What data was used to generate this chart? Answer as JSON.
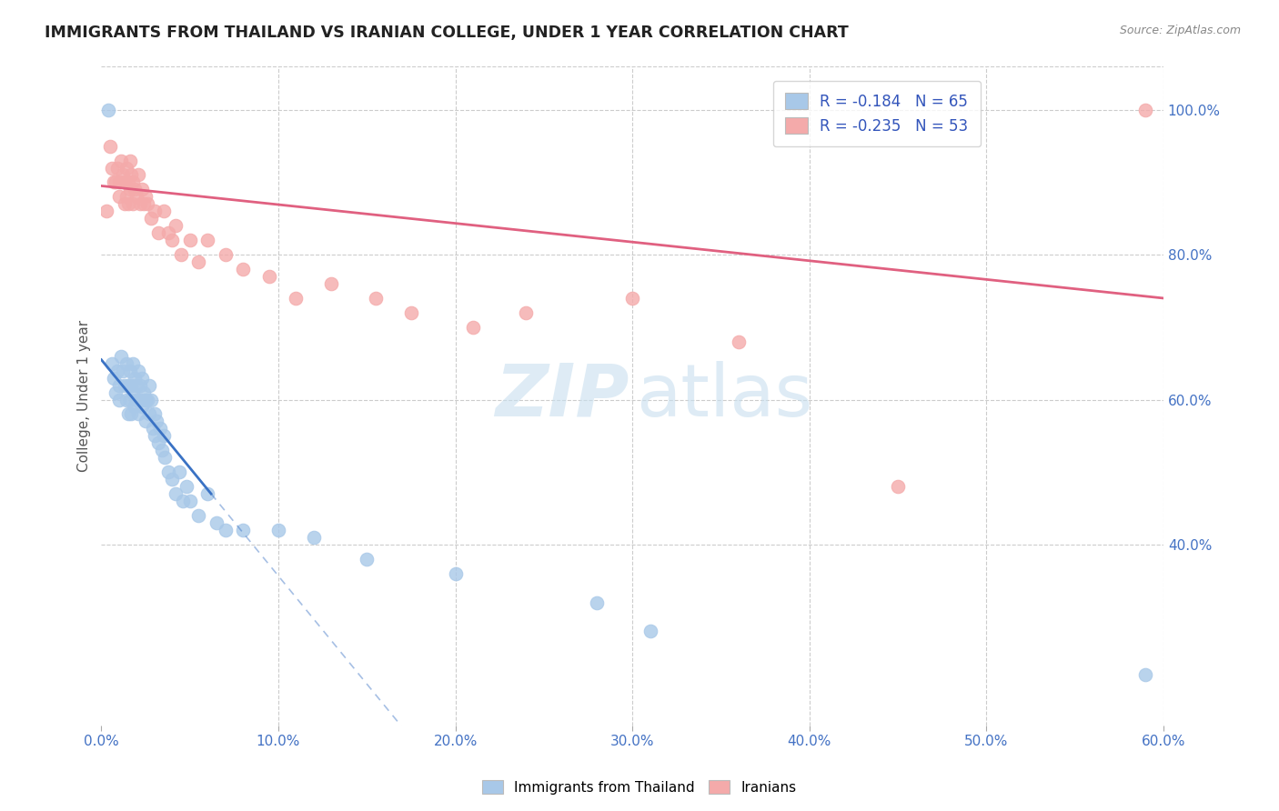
{
  "title": "IMMIGRANTS FROM THAILAND VS IRANIAN COLLEGE, UNDER 1 YEAR CORRELATION CHART",
  "source": "Source: ZipAtlas.com",
  "ylabel_label": "College, Under 1 year",
  "xlim": [
    0.0,
    0.6
  ],
  "ylim": [
    0.15,
    1.06
  ],
  "legend_r1": "-0.184",
  "legend_n1": "65",
  "legend_r2": "-0.235",
  "legend_n2": "53",
  "blue_color": "#A8C8E8",
  "pink_color": "#F4AAAA",
  "blue_line_color": "#3A72C4",
  "pink_line_color": "#E06080",
  "background_color": "#FFFFFF",
  "blue_scatter_x": [
    0.004,
    0.006,
    0.007,
    0.008,
    0.009,
    0.01,
    0.01,
    0.011,
    0.012,
    0.013,
    0.014,
    0.014,
    0.015,
    0.015,
    0.016,
    0.016,
    0.017,
    0.017,
    0.018,
    0.018,
    0.019,
    0.019,
    0.02,
    0.02,
    0.021,
    0.021,
    0.022,
    0.022,
    0.023,
    0.023,
    0.024,
    0.025,
    0.025,
    0.026,
    0.027,
    0.027,
    0.028,
    0.029,
    0.03,
    0.03,
    0.031,
    0.032,
    0.033,
    0.034,
    0.035,
    0.036,
    0.038,
    0.04,
    0.042,
    0.044,
    0.046,
    0.048,
    0.05,
    0.055,
    0.06,
    0.065,
    0.07,
    0.08,
    0.1,
    0.12,
    0.15,
    0.2,
    0.28,
    0.31,
    0.59
  ],
  "blue_scatter_y": [
    1.0,
    0.65,
    0.63,
    0.61,
    0.64,
    0.62,
    0.6,
    0.66,
    0.64,
    0.62,
    0.65,
    0.6,
    0.62,
    0.58,
    0.64,
    0.6,
    0.62,
    0.58,
    0.65,
    0.61,
    0.63,
    0.59,
    0.62,
    0.6,
    0.64,
    0.58,
    0.62,
    0.6,
    0.63,
    0.59,
    0.61,
    0.6,
    0.57,
    0.6,
    0.62,
    0.58,
    0.6,
    0.56,
    0.58,
    0.55,
    0.57,
    0.54,
    0.56,
    0.53,
    0.55,
    0.52,
    0.5,
    0.49,
    0.47,
    0.5,
    0.46,
    0.48,
    0.46,
    0.44,
    0.47,
    0.43,
    0.42,
    0.42,
    0.42,
    0.41,
    0.38,
    0.36,
    0.32,
    0.28,
    0.22
  ],
  "pink_scatter_x": [
    0.003,
    0.005,
    0.006,
    0.007,
    0.008,
    0.009,
    0.01,
    0.01,
    0.011,
    0.012,
    0.013,
    0.013,
    0.014,
    0.014,
    0.015,
    0.015,
    0.016,
    0.016,
    0.017,
    0.018,
    0.018,
    0.019,
    0.02,
    0.021,
    0.022,
    0.023,
    0.024,
    0.025,
    0.026,
    0.028,
    0.03,
    0.032,
    0.035,
    0.038,
    0.04,
    0.042,
    0.045,
    0.05,
    0.055,
    0.06,
    0.07,
    0.08,
    0.095,
    0.11,
    0.13,
    0.155,
    0.175,
    0.21,
    0.24,
    0.3,
    0.36,
    0.45,
    0.59
  ],
  "pink_scatter_y": [
    0.86,
    0.95,
    0.92,
    0.9,
    0.9,
    0.92,
    0.9,
    0.88,
    0.93,
    0.91,
    0.9,
    0.87,
    0.92,
    0.88,
    0.9,
    0.87,
    0.93,
    0.89,
    0.91,
    0.9,
    0.87,
    0.89,
    0.88,
    0.91,
    0.87,
    0.89,
    0.87,
    0.88,
    0.87,
    0.85,
    0.86,
    0.83,
    0.86,
    0.83,
    0.82,
    0.84,
    0.8,
    0.82,
    0.79,
    0.82,
    0.8,
    0.78,
    0.77,
    0.74,
    0.76,
    0.74,
    0.72,
    0.7,
    0.72,
    0.74,
    0.68,
    0.48,
    1.0
  ],
  "blue_line_x0": 0.0,
  "blue_line_x_solid_end": 0.062,
  "blue_line_x_dash_end": 0.6,
  "pink_line_x0": 0.0,
  "pink_line_x_end": 0.6
}
